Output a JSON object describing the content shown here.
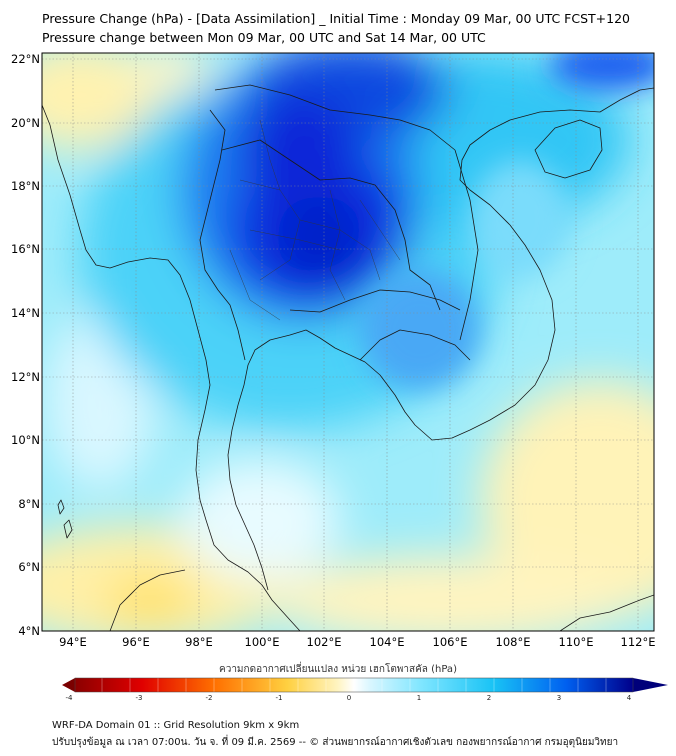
{
  "title_line1": "Pressure Change (hPa) - [Data Assimilation] _ Initial Time : Monday 09 Mar, 00 UTC FCST+120",
  "title_line2": "Pressure change between Mon 09 Mar, 00 UTC and Sat 14 Mar, 00 UTC",
  "lat_labels": [
    "22°N",
    "20°N",
    "18°N",
    "16°N",
    "14°N",
    "12°N",
    "10°N",
    "8°N",
    "6°N",
    "4°N"
  ],
  "lon_labels": [
    "94°E",
    "96°E",
    "98°E",
    "100°E",
    "102°E",
    "104°E",
    "106°E",
    "108°E",
    "110°E",
    "112°E"
  ],
  "colorbar": {
    "title": "ความกดอากาศเปลี่ยนแปลง หน่วย เฮกโตพาสคัล (hPa)",
    "ticks": [
      "-4",
      "-3",
      "-2",
      "-1",
      "0",
      "1",
      "2",
      "3",
      "4"
    ],
    "range": [
      -4,
      4
    ],
    "low_color": "#7a0000",
    "high_color": "#00007a"
  },
  "footer_line1": "WRF-DA Domain 01 :: Grid Resolution 9km x 9km",
  "footer_line2": "ปรับปรุงข้อมูล ณ เวลา 07:00น. วัน จ. ที่ 09 มี.ค. 2569 -- © ส่วนพยากรณ์อากาศเชิงตัวเลข กองพยากรณ์อากาศ กรมอุตุนิยมวิทยา"
}
